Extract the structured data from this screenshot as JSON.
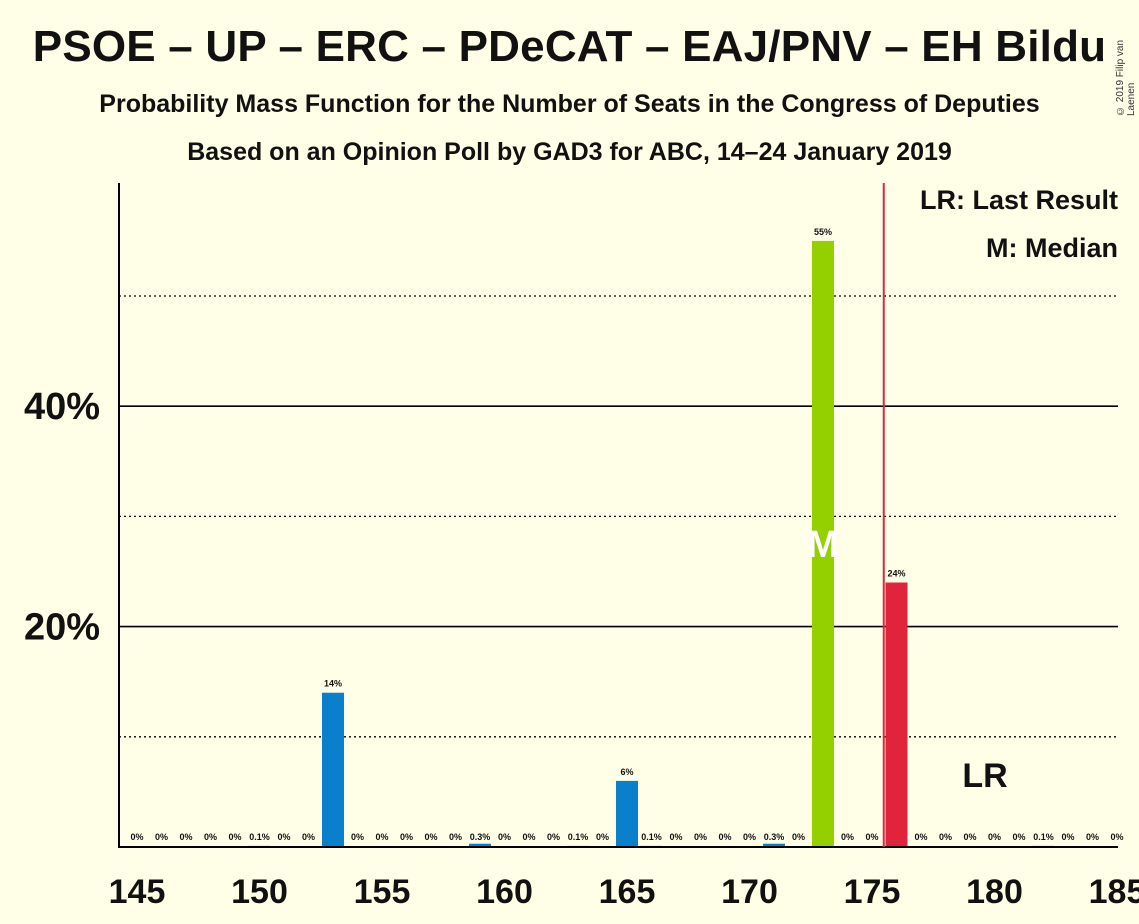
{
  "title": "PSOE – UP – ERC – PDeCAT – EAJ/PNV – EH Bildu",
  "subtitle": "Probability Mass Function for the Number of Seats in the Congress of Deputies",
  "subtitle2": "Based on an Opinion Poll by GAD3 for ABC, 14–24 January 2019",
  "copyright": "© 2019 Filip van Laenen",
  "legend": {
    "lr": "LR: Last Result",
    "m": "M: Median"
  },
  "markers": {
    "median_label": "M",
    "lr_label": "LR",
    "median_seat": 173,
    "last_result_seat": 176
  },
  "colors": {
    "blue": "#0A80CC",
    "green": "#94D000",
    "red": "#E0243C",
    "lr_line": "#E0243C"
  },
  "chart_data": {
    "type": "bar",
    "x": [
      145,
      146,
      147,
      148,
      149,
      150,
      151,
      152,
      153,
      154,
      155,
      156,
      157,
      158,
      159,
      160,
      161,
      162,
      163,
      164,
      165,
      166,
      167,
      168,
      169,
      170,
      171,
      172,
      173,
      174,
      175,
      176,
      177,
      178,
      179,
      180,
      181,
      182,
      183,
      184,
      185
    ],
    "values": [
      0,
      0,
      0,
      0,
      0,
      0.1,
      0,
      0,
      14,
      0,
      0,
      0,
      0,
      0,
      0.3,
      0,
      0,
      0,
      0.1,
      0,
      6,
      0.1,
      0,
      0,
      0,
      0,
      0.3,
      0,
      55,
      0,
      0,
      24,
      0,
      0,
      0,
      0,
      0,
      0.1,
      0,
      0,
      0
    ],
    "labels": [
      "0%",
      "0%",
      "0%",
      "0%",
      "0%",
      "0.1%",
      "0%",
      "0%",
      "14%",
      "0%",
      "0%",
      "0%",
      "0%",
      "0%",
      "0.3%",
      "0%",
      "0%",
      "0%",
      "0.1%",
      "0%",
      "6%",
      "0.1%",
      "0%",
      "0%",
      "0%",
      "0%",
      "0.3%",
      "0%",
      "55%",
      "0%",
      "0%",
      "24%",
      "0%",
      "0%",
      "0%",
      "0%",
      "0%",
      "0.1%",
      "0%",
      "0%",
      "0%"
    ],
    "x_ticks": [
      "145",
      "150",
      "155",
      "160",
      "165",
      "170",
      "175",
      "180",
      "185"
    ],
    "y_ticks": [
      "20%",
      "40%"
    ],
    "ylim": [
      0,
      60
    ],
    "gridlines": {
      "solid": [
        20,
        40
      ],
      "dotted": [
        10,
        30,
        50
      ]
    },
    "xlabel": "",
    "ylabel": ""
  }
}
